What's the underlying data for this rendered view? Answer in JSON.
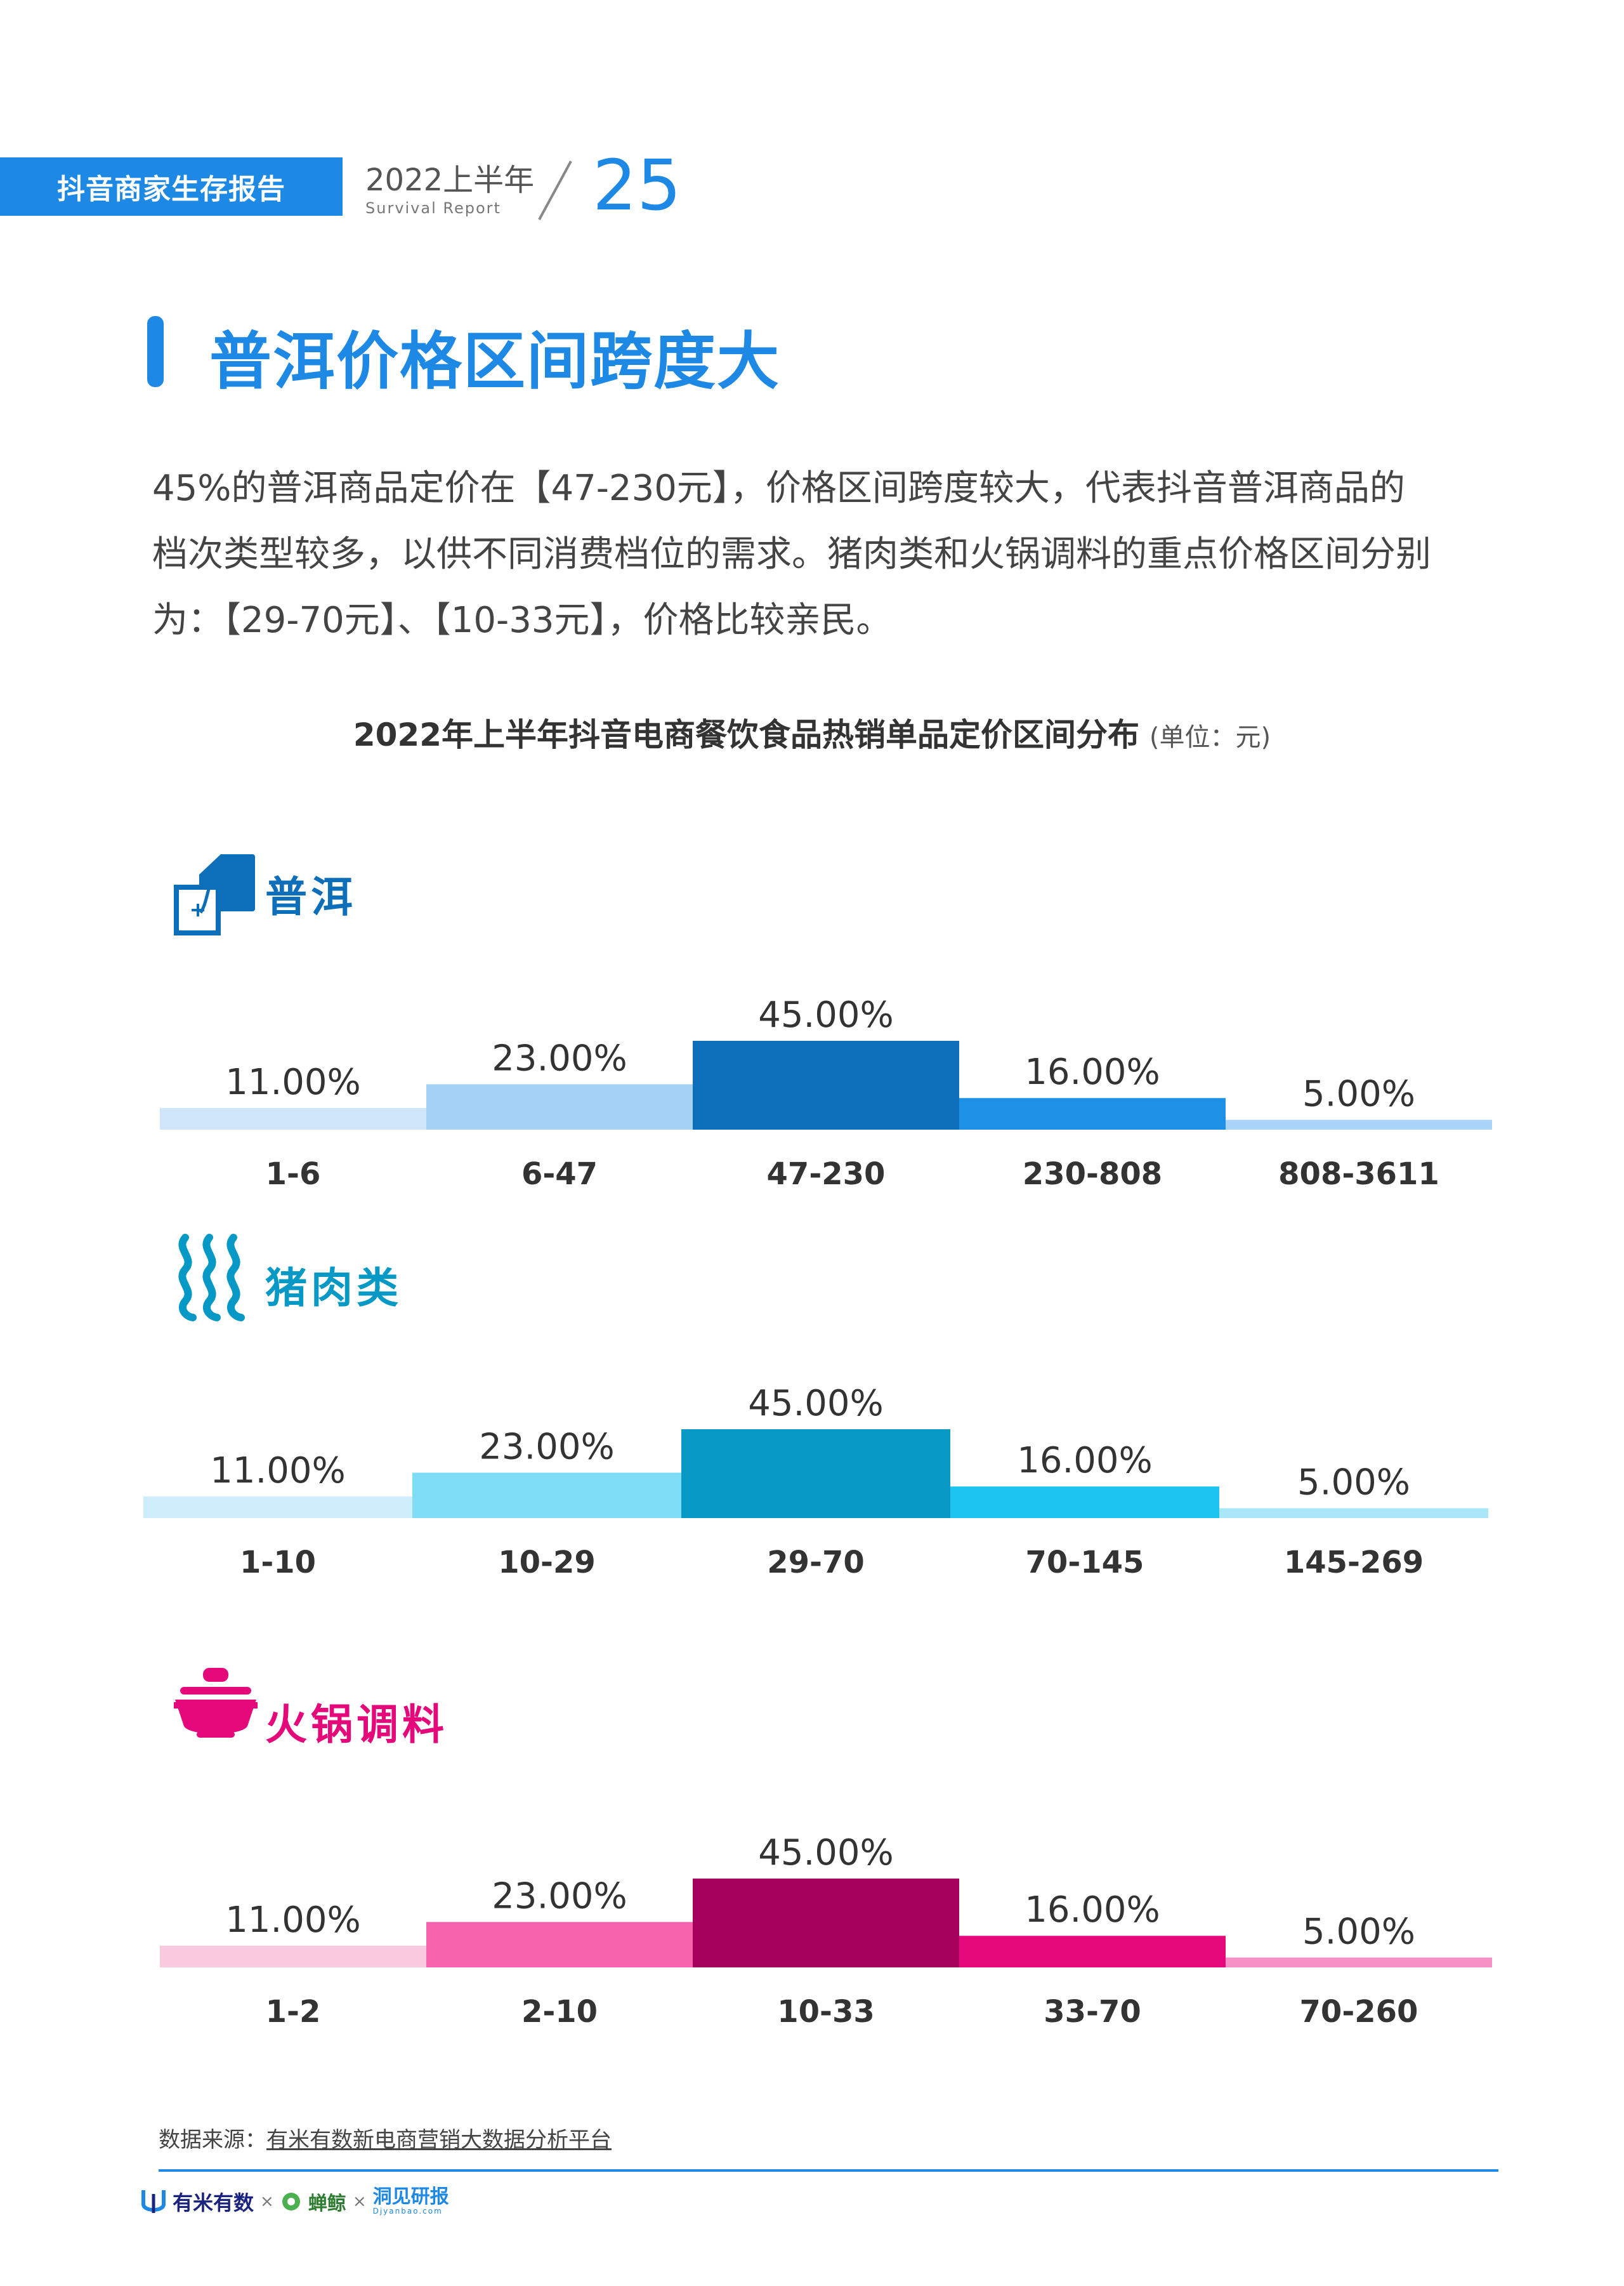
{
  "header": {
    "report_name": "抖音商家生存报告",
    "year_label": "2022上半年",
    "sub_label": "Survival Report",
    "page_number": "25"
  },
  "section": {
    "title": "普洱价格区间跨度大"
  },
  "body": {
    "lines": [
      "45%的普洱商品定价在【47-230元】，价格区间跨度较大，代表抖音普洱商品的",
      "档次类型较多，以供不同消费档位的需求。猪肉类和火锅调料的重点价格区间分别",
      "为：【29-70元】、【10-33元】，价格比较亲民。"
    ]
  },
  "chart_title": {
    "main": "2022年上半年抖音电商餐饮食品热销单品定价区间分布",
    "unit": "(单位：元)"
  },
  "categories": {
    "puer": {
      "label": "普洱",
      "icon": "tea-leaf-icon"
    },
    "pork": {
      "label": "猪肉类",
      "icon": "bacon-icon"
    },
    "hotpot": {
      "label": "火锅调料",
      "icon": "hotpot-icon"
    }
  },
  "chart_data": [
    {
      "type": "bar",
      "name": "普洱",
      "categories": [
        "1-6",
        "6-47",
        "47-230",
        "230-808",
        "808-3611"
      ],
      "values": [
        11.0,
        23.0,
        45.0,
        16.0,
        5.0
      ],
      "labels": [
        "11.00%",
        "23.00%",
        "45.00%",
        "16.00%",
        "5.00%"
      ],
      "colors": [
        "#cfe6fa",
        "#a6d1f7",
        "#0d6eb9",
        "#1e90e6",
        "#a9d3f7"
      ],
      "ylim": [
        0,
        45
      ]
    },
    {
      "type": "bar",
      "name": "猪肉类",
      "categories": [
        "1-10",
        "10-29",
        "29-70",
        "70-145",
        "145-269"
      ],
      "values": [
        11.0,
        23.0,
        45.0,
        16.0,
        5.0
      ],
      "labels": [
        "11.00%",
        "23.00%",
        "45.00%",
        "16.00%",
        "5.00%"
      ],
      "colors": [
        "#cdeefa",
        "#7fdcf6",
        "#0799c6",
        "#1dc4f2",
        "#a9e7f8"
      ],
      "ylim": [
        0,
        45
      ]
    },
    {
      "type": "bar",
      "name": "火锅调料",
      "categories": [
        "1-2",
        "2-10",
        "10-33",
        "33-70",
        "70-260"
      ],
      "values": [
        11.0,
        23.0,
        45.0,
        16.0,
        5.0
      ],
      "labels": [
        "11.00%",
        "23.00%",
        "45.00%",
        "16.00%",
        "5.00%"
      ],
      "colors": [
        "#f9c9df",
        "#f764ad",
        "#a5005b",
        "#e4087a",
        "#f591c4"
      ],
      "ylim": [
        0,
        45
      ]
    }
  ],
  "footer": {
    "source_prefix": "数据来源：",
    "source_link": "有米有数新电商营销大数据分析平台",
    "logo_youmi": "有米有数",
    "logo_x1": "×",
    "logo_chanjing": "蝉鲸",
    "logo_x2": "×",
    "logo_dongbei": "洞见研报",
    "logo_dongbei_sub": "Djyanbao.com",
    "accent_color": "#1e88e5"
  }
}
